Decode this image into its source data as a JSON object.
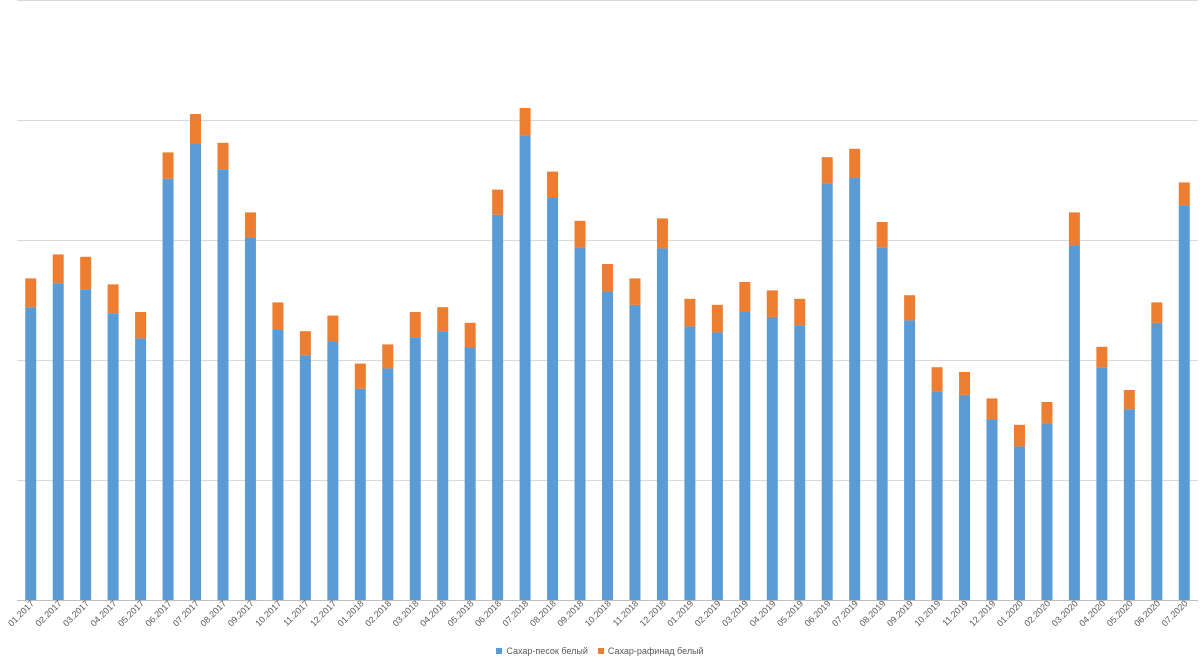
{
  "chart_data": {
    "type": "bar",
    "stacked": true,
    "title": "",
    "xlabel": "",
    "ylabel": "",
    "ylim": [
      0,
      500
    ],
    "ytick_step": 100,
    "show_y_tick_labels": false,
    "grid": "horizontal",
    "legend_position": "bottom",
    "categories": [
      "01.2017",
      "02.2017",
      "03.2017",
      "04.2017",
      "05.2017",
      "06.2017",
      "07.2017",
      "08.2017",
      "09.2017",
      "10.2017",
      "11.2017",
      "12.2017",
      "01.2018",
      "02.2018",
      "03.2018",
      "04.2018",
      "05.2018",
      "06.2018",
      "07.2018",
      "08.2018",
      "09.2018",
      "10.2018",
      "11.2018",
      "12.2018",
      "01.2019",
      "02.2019",
      "03.2019",
      "04.2019",
      "05.2019",
      "06.2019",
      "07.2019",
      "08.2019",
      "09.2019",
      "10.2019",
      "11.2019",
      "12.2019",
      "01.2020",
      "02.2020",
      "03.2020",
      "04.2020",
      "05.2020",
      "06.2020",
      "07.2020"
    ],
    "series": [
      {
        "name": "Сахар-песок белый",
        "color": "#5b9bd5",
        "values": [
          244,
          264,
          259,
          239,
          218,
          351,
          380,
          359,
          302,
          225,
          204,
          215,
          176,
          193,
          219,
          224,
          210,
          321,
          387,
          335,
          294,
          257,
          246,
          293,
          228,
          223,
          240,
          236,
          229,
          347,
          352,
          294,
          233,
          174,
          171,
          150,
          128,
          147,
          295,
          194,
          159,
          231,
          329
        ]
      },
      {
        "name": "Сахар-рафинад белый",
        "color": "#ed7d31",
        "values": [
          24,
          24,
          27,
          24,
          22,
          22,
          25,
          22,
          21,
          23,
          20,
          22,
          21,
          20,
          21,
          20,
          21,
          21,
          23,
          22,
          22,
          23,
          22,
          25,
          23,
          23,
          25,
          22,
          22,
          22,
          24,
          21,
          21,
          20,
          19,
          18,
          18,
          18,
          28,
          17,
          16,
          17,
          19
        ]
      }
    ]
  }
}
